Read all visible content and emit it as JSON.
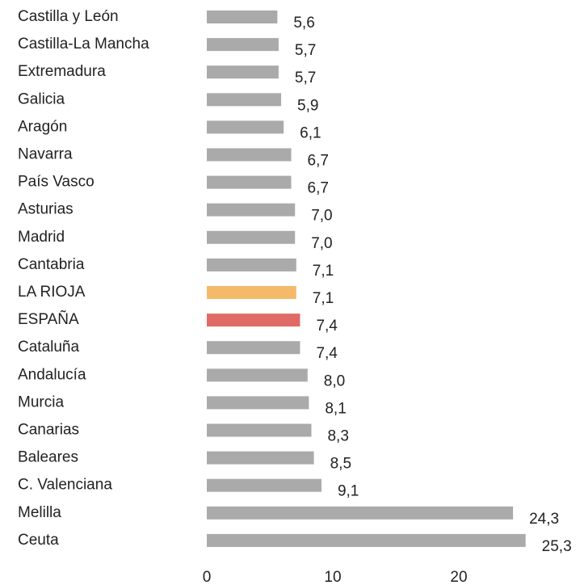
{
  "chart_data": {
    "type": "bar",
    "orientation": "horizontal",
    "categories": [
      "Castilla y León",
      "Castilla-La Mancha",
      "Extremadura",
      "Galicia",
      "Aragón",
      "Navarra",
      "País Vasco",
      "Asturias",
      "Madrid",
      "Cantabria",
      "LA RIOJA",
      "ESPAÑA",
      "Cataluña",
      "Andalucía",
      "Murcia",
      "Canarias",
      "Baleares",
      "C. Valenciana",
      "Melilla",
      "Ceuta"
    ],
    "values": [
      5.6,
      5.7,
      5.7,
      5.9,
      6.1,
      6.7,
      6.7,
      7.0,
      7.0,
      7.1,
      7.1,
      7.4,
      7.4,
      8.0,
      8.1,
      8.3,
      8.5,
      9.1,
      24.3,
      25.3
    ],
    "value_labels": [
      "5,6",
      "5,7",
      "5,7",
      "5,9",
      "6,1",
      "6,7",
      "6,7",
      "7,0",
      "7,0",
      "7,1",
      "7,1",
      "7,4",
      "7,4",
      "8,0",
      "8,1",
      "8,3",
      "8,5",
      "9,1",
      "24,3",
      "25,3"
    ],
    "colors": [
      "#aaaaaa",
      "#aaaaaa",
      "#aaaaaa",
      "#aaaaaa",
      "#aaaaaa",
      "#aaaaaa",
      "#aaaaaa",
      "#aaaaaa",
      "#aaaaaa",
      "#aaaaaa",
      "#f5b96a",
      "#e06b66",
      "#aaaaaa",
      "#aaaaaa",
      "#aaaaaa",
      "#aaaaaa",
      "#aaaaaa",
      "#aaaaaa",
      "#aaaaaa",
      "#aaaaaa"
    ],
    "xlim": [
      0,
      29.5
    ],
    "xticks": [
      0,
      10,
      20
    ],
    "grid": false
  }
}
